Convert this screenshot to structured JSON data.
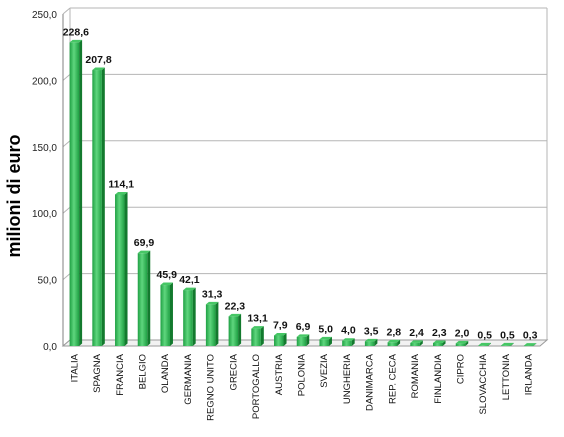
{
  "chart_data": {
    "type": "bar",
    "ylabel": "milioni di euro",
    "xlabel": "",
    "ylim": [
      0,
      250
    ],
    "yticks": [
      "0,0",
      "50,0",
      "100,0",
      "150,0",
      "200,0",
      "250,0"
    ],
    "grid": true,
    "style": "3d-columns",
    "colors": {
      "bar_front": "#1fa043",
      "bar_light": "#5fd67e",
      "bar_side": "#137a2e",
      "bar_top": "#46c765",
      "grid": "#b5b5b5"
    },
    "categories": [
      "ITALIA",
      "SPAGNA",
      "FRANCIA",
      "BELGIO",
      "OLANDA",
      "GERMANIA",
      "REGNO UNITO",
      "GRECIA",
      "PORTOGALLO",
      "AUSTRIA",
      "POLONIA",
      "SVEZIA",
      "UNGHERIA",
      "DANIMARCA",
      "REP. CECA",
      "ROMANIA",
      "FINLANDIA",
      "CIPRO",
      "SLOVACCHIA",
      "LETTONIA",
      "IRLANDA"
    ],
    "values": [
      228.6,
      207.8,
      114.1,
      69.9,
      45.9,
      42.1,
      31.3,
      22.3,
      13.1,
      7.9,
      6.9,
      5.0,
      4.0,
      3.5,
      2.8,
      2.4,
      2.3,
      2.0,
      0.5,
      0.5,
      0.3
    ],
    "value_labels": [
      "228,6",
      "207,8",
      "114,1",
      "69,9",
      "45,9",
      "42,1",
      "31,3",
      "22,3",
      "13,1",
      "7,9",
      "6,9",
      "5,0",
      "4,0",
      "3,5",
      "2,8",
      "2,4",
      "2,3",
      "2,0",
      "0,5",
      "0,5",
      "0,3"
    ]
  }
}
